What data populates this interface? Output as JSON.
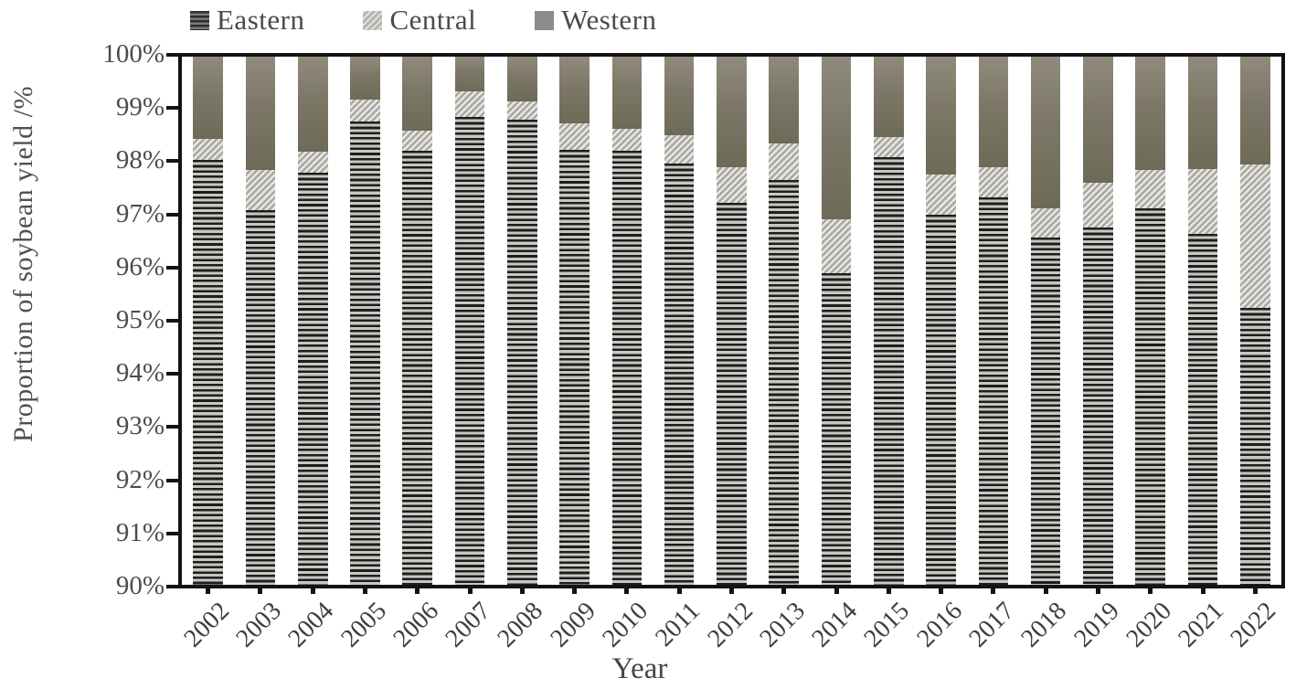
{
  "legend": {
    "items": [
      {
        "label": "Eastern",
        "pattern": "horizontal-stripes"
      },
      {
        "label": "Central",
        "pattern": "diagonal-hatch"
      },
      {
        "label": "Western",
        "pattern": "solid"
      }
    ]
  },
  "y_axis": {
    "title": "Proportion of soybean yield /%",
    "tick_labels": [
      "100%",
      "99%",
      "98%",
      "97%",
      "96%",
      "95%",
      "94%",
      "93%",
      "92%",
      "91%",
      "90%"
    ]
  },
  "x_axis": {
    "title": "Year",
    "tick_labels": [
      "2002",
      "2003",
      "2004",
      "2005",
      "2006",
      "2007",
      "2008",
      "2009",
      "2010",
      "2011",
      "2012",
      "2013",
      "2014",
      "2015",
      "2016",
      "2017",
      "2018",
      "2019",
      "2020",
      "2021",
      "2022"
    ]
  },
  "chart_data": {
    "type": "bar",
    "stacked": true,
    "title": "",
    "xlabel": "Year",
    "ylabel": "Proportion of soybean yield /%",
    "ylim": [
      90,
      100
    ],
    "y_tick_step": 1,
    "y_unit": "%",
    "grid": false,
    "legend_position": "top",
    "categories": [
      2002,
      2003,
      2004,
      2005,
      2006,
      2007,
      2008,
      2009,
      2010,
      2011,
      2012,
      2013,
      2014,
      2015,
      2016,
      2017,
      2018,
      2019,
      2020,
      2021,
      2022
    ],
    "series": [
      {
        "name": "Eastern",
        "values": [
          98.05,
          97.1,
          97.8,
          98.78,
          98.22,
          98.85,
          98.8,
          98.23,
          98.22,
          97.97,
          97.23,
          97.66,
          95.9,
          98.09,
          97.01,
          97.33,
          96.57,
          96.76,
          97.13,
          96.64,
          95.25
        ]
      },
      {
        "name": "Central",
        "values": [
          0.4,
          0.75,
          0.4,
          0.4,
          0.38,
          0.5,
          0.35,
          0.5,
          0.42,
          0.55,
          0.67,
          0.7,
          1.02,
          0.39,
          0.75,
          0.58,
          0.55,
          0.86,
          0.72,
          1.24,
          2.7
        ]
      },
      {
        "name": "Western",
        "values": [
          1.55,
          2.15,
          1.8,
          0.82,
          1.4,
          0.65,
          0.85,
          1.27,
          1.36,
          1.48,
          2.1,
          1.64,
          3.08,
          1.52,
          2.24,
          2.09,
          2.88,
          2.38,
          2.15,
          2.12,
          2.05
        ]
      }
    ]
  },
  "colors": {
    "eastern_stripe_dark": "#1e1e1e",
    "eastern_stripe_light": "#c9c7c1",
    "central_hatch_light": "#e8e6e1",
    "central_hatch_dark": "#a9a7a1",
    "western_fill_top": "#908b7c",
    "western_fill_bottom": "#6e6a58",
    "axis": "#131313",
    "text": "#4a4a4a"
  }
}
